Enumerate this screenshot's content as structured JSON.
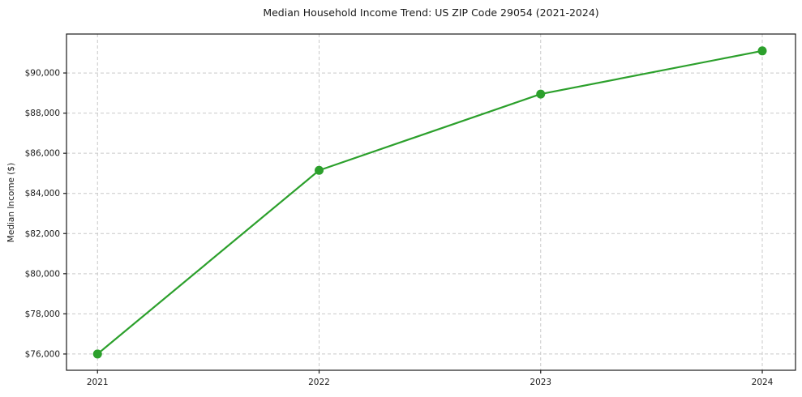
{
  "chart_data": {
    "type": "line",
    "title": "Median Household Income Trend: US ZIP Code 29054 (2021-2024)",
    "xlabel": "",
    "ylabel": "Median Income ($)",
    "x": [
      2021,
      2022,
      2023,
      2024
    ],
    "x_tick_labels": [
      "2021",
      "2022",
      "2023",
      "2024"
    ],
    "series": [
      {
        "name": "Median household income",
        "values": [
          76000,
          85150,
          88950,
          91100
        ]
      }
    ],
    "y_ticks": [
      {
        "value": 76000,
        "label": "$76,000"
      },
      {
        "value": 78000,
        "label": "$78,000"
      },
      {
        "value": 80000,
        "label": "$80,000"
      },
      {
        "value": 82000,
        "label": "$82,000"
      },
      {
        "value": 84000,
        "label": "$84,000"
      },
      {
        "value": 86000,
        "label": "$86,000"
      },
      {
        "value": 88000,
        "label": "$88,000"
      },
      {
        "value": 90000,
        "label": "$90,000"
      }
    ],
    "xlim": [
      2020.86,
      2024.15
    ],
    "ylim": [
      75190,
      91940
    ],
    "grid": true,
    "grid_style": "dashed",
    "legend": "none",
    "colors": {
      "line": "#2ca02c",
      "marker": "#2ca02c",
      "grid": "#c9c9c9",
      "axis_border": "#1a1a1a",
      "text": "#1a1a1a"
    }
  }
}
